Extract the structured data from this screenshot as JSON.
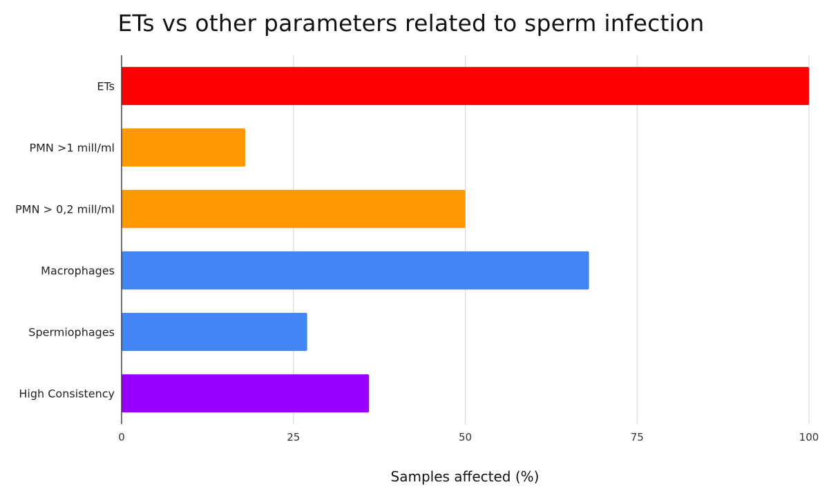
{
  "chart_data": {
    "type": "bar",
    "orientation": "horizontal",
    "title": "ETs vs other parameters related to sperm infection",
    "xlabel": "Samples affected (%)",
    "ylabel": "",
    "xlim": [
      0,
      100
    ],
    "x_ticks": [
      "0",
      "25",
      "50",
      "75",
      "100"
    ],
    "grid": true,
    "legend": "none",
    "categories": [
      "ETs",
      "PMN >1 mill/ml",
      "PMN > 0,2 mill/ml",
      "Macrophages",
      "Spermiophages",
      "High Consistency"
    ],
    "values": [
      100,
      18,
      50,
      68,
      27,
      36
    ],
    "colors": [
      "#ff0000",
      "#ff9900",
      "#ff9900",
      "#4285f4",
      "#4285f4",
      "#9900ff"
    ]
  }
}
